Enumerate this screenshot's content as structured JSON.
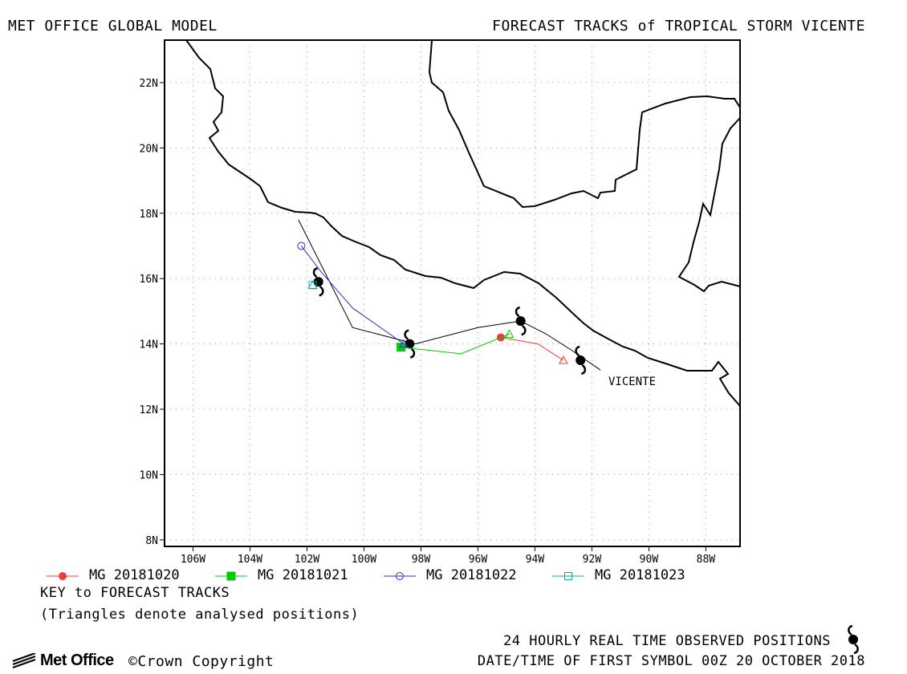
{
  "header": {
    "model_title": "MET OFFICE GLOBAL MODEL",
    "chart_title": "FORECAST TRACKS of TROPICAL STORM VICENTE"
  },
  "storm_label": "VICENTE",
  "colors": {
    "mg20181020": "#ee3b3b",
    "mg20181021": "#00cc00",
    "mg20181022": "#2233cc",
    "mg20181023": "#11aaaa",
    "observed": "#000000",
    "grid": "#999999"
  },
  "legend": [
    {
      "label": "MG 20181020",
      "color": "#ee3b3b",
      "marker": "filled-circle"
    },
    {
      "label": "MG 20181021",
      "color": "#00cc00",
      "marker": "filled-square"
    },
    {
      "label": "MG 20181022",
      "color": "#2233cc",
      "marker": "open-circle"
    },
    {
      "label": "MG 20181023",
      "color": "#11aaaa",
      "marker": "open-square"
    }
  ],
  "key": {
    "title": "KEY to FORECAST TRACKS",
    "note": "(Triangles denote analysed positions)"
  },
  "footer": {
    "observed_text": "24 HOURLY REAL TIME OBSERVED POSITIONS",
    "date_text": "DATE/TIME OF FIRST SYMBOL 00Z 20 OCTOBER 2018",
    "logo": "Met Office",
    "copyright": "Crown Copyright"
  },
  "chart_data": {
    "type": "scatter",
    "xlim": [
      -107,
      -86.8
    ],
    "ylim": [
      7.8,
      23.3
    ],
    "x_ticks": [
      -106,
      -104,
      -102,
      -100,
      -98,
      -96,
      -94,
      -92,
      -90,
      -88
    ],
    "x_tick_labels": [
      "106W",
      "104W",
      "102W",
      "100W",
      "98W",
      "96W",
      "94W",
      "92W",
      "90W",
      "88W"
    ],
    "y_ticks": [
      8,
      10,
      12,
      14,
      16,
      18,
      20,
      22
    ],
    "y_tick_labels": [
      "8N",
      "10N",
      "12N",
      "14N",
      "16N",
      "18N",
      "20N",
      "22N"
    ],
    "grid": true,
    "observed_track": {
      "name": "observed",
      "path_lon": [
        -91.7,
        -92.7,
        -93.6,
        -94.5,
        -96.0,
        -98.2,
        -100.4,
        -102.3
      ],
      "path_lat": [
        13.2,
        13.8,
        14.3,
        14.7,
        14.5,
        14.0,
        14.5,
        17.8
      ],
      "symbols_lon": [
        -92.4,
        -94.5,
        -98.4,
        -101.6
      ],
      "symbols_lat": [
        13.5,
        14.7,
        14.0,
        15.9
      ]
    },
    "series": [
      {
        "name": "MG 20181020",
        "lon": [
          -93.0,
          -93.9,
          -95.2
        ],
        "lat": [
          13.5,
          14.0,
          14.2
        ],
        "start_marker": "filled-circle",
        "analysed": [
          -93.0,
          13.5
        ]
      },
      {
        "name": "MG 20181021",
        "lon": [
          -94.9,
          -96.6,
          -98.7
        ],
        "lat": [
          14.3,
          13.7,
          13.9
        ],
        "start_marker": "filled-square",
        "analysed": [
          -94.9,
          14.3
        ]
      },
      {
        "name": "MG 20181022",
        "lon": [
          -98.6,
          -100.4,
          -101.5,
          -102.2
        ],
        "lat": [
          14.0,
          15.1,
          16.2,
          17.0
        ],
        "start_marker": "open-circle",
        "analysed": [
          -98.6,
          14.0
        ]
      },
      {
        "name": "MG 20181023",
        "lon": [
          -101.8
        ],
        "lat": [
          15.8
        ],
        "start_marker": "open-square",
        "analysed": [
          -101.8,
          15.8
        ]
      }
    ]
  }
}
